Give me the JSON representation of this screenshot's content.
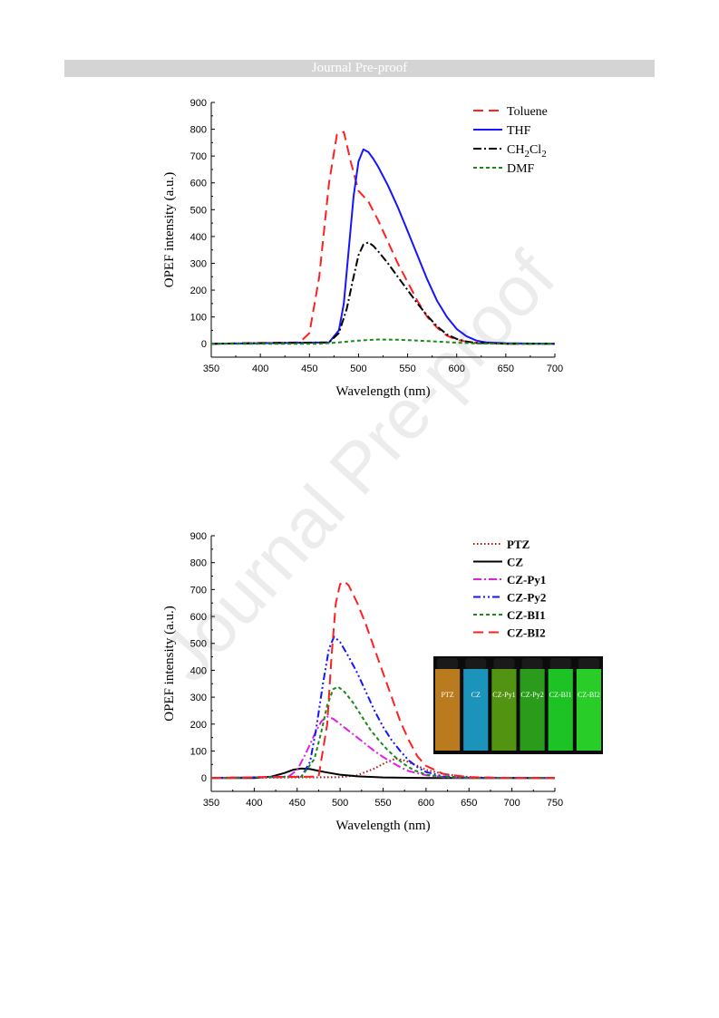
{
  "header": {
    "banner_text": "Journal Pre-proof"
  },
  "watermark": "Journal Pre-proof",
  "chart_data": [
    {
      "type": "line",
      "title": "",
      "xlabel": "Wavelength (nm)",
      "ylabel": "OPEF intensity (a.u.)",
      "xlim": [
        350,
        700
      ],
      "ylim": [
        -50,
        900
      ],
      "xticks": [
        350,
        400,
        450,
        500,
        550,
        600,
        650,
        700
      ],
      "yticks": [
        0,
        100,
        200,
        300,
        400,
        500,
        600,
        700,
        800,
        900
      ],
      "legend_position": "top-right",
      "series": [
        {
          "name": "Toluene",
          "color": "#ff2020",
          "dash": "long-dash",
          "x": [
            350,
            440,
            450,
            460,
            470,
            478,
            485,
            492,
            500,
            510,
            520,
            530,
            540,
            550,
            560,
            570,
            580,
            590,
            600,
            610,
            620,
            650,
            700
          ],
          "y": [
            0,
            5,
            40,
            250,
            600,
            780,
            790,
            680,
            570,
            530,
            460,
            380,
            300,
            230,
            160,
            100,
            60,
            30,
            15,
            8,
            3,
            0,
            0
          ]
        },
        {
          "name": "THF",
          "color": "#1515ff",
          "dash": "solid",
          "x": [
            350,
            470,
            480,
            485,
            490,
            495,
            500,
            505,
            510,
            515,
            520,
            530,
            540,
            550,
            560,
            570,
            580,
            590,
            600,
            610,
            620,
            630,
            650,
            700
          ],
          "y": [
            0,
            5,
            50,
            150,
            350,
            550,
            680,
            725,
            715,
            690,
            660,
            590,
            510,
            420,
            330,
            240,
            160,
            100,
            55,
            28,
            12,
            5,
            2,
            0
          ]
        },
        {
          "name": "CH2Cl2",
          "label_main": "CH",
          "label_sub1": "2",
          "label_mid": "Cl",
          "label_sub2": "2",
          "color": "#000000",
          "dash": "dash-dot",
          "x": [
            350,
            470,
            480,
            488,
            495,
            500,
            505,
            510,
            515,
            520,
            530,
            540,
            550,
            560,
            570,
            580,
            590,
            600,
            610,
            620,
            650,
            700
          ],
          "y": [
            0,
            5,
            40,
            130,
            250,
            330,
            370,
            378,
            365,
            345,
            300,
            250,
            200,
            150,
            105,
            65,
            35,
            18,
            8,
            3,
            0,
            0
          ]
        },
        {
          "name": "DMF",
          "color": "#1a8a1a",
          "dash": "short-dash",
          "x": [
            350,
            460,
            480,
            500,
            520,
            540,
            560,
            580,
            600,
            620,
            650,
            700
          ],
          "y": [
            0,
            0,
            5,
            12,
            16,
            15,
            12,
            8,
            4,
            1,
            0,
            0
          ]
        }
      ]
    },
    {
      "type": "line",
      "title": "",
      "xlabel": "Wavelength (nm)",
      "ylabel": "OPEF intensity (a.u.)",
      "xlim": [
        350,
        750
      ],
      "ylim": [
        -50,
        900
      ],
      "xticks": [
        350,
        400,
        450,
        500,
        550,
        600,
        650,
        700,
        750
      ],
      "yticks": [
        0,
        100,
        200,
        300,
        400,
        500,
        600,
        700,
        800,
        900
      ],
      "legend_position": "top-right",
      "series": [
        {
          "name": "PTZ",
          "color": "#b01010",
          "dash": "dotted",
          "x": [
            350,
            500,
            520,
            540,
            555,
            565,
            575,
            590,
            600,
            620,
            640,
            660,
            700,
            750
          ],
          "y": [
            0,
            3,
            10,
            35,
            60,
            72,
            65,
            45,
            30,
            15,
            6,
            2,
            0,
            0
          ]
        },
        {
          "name": "CZ",
          "color": "#000000",
          "dash": "solid",
          "x": [
            350,
            400,
            420,
            435,
            445,
            455,
            465,
            475,
            485,
            500,
            520,
            550,
            600,
            650,
            750
          ],
          "y": [
            0,
            0,
            5,
            18,
            30,
            35,
            33,
            26,
            20,
            12,
            6,
            2,
            0,
            0,
            0
          ]
        },
        {
          "name": "CZ-Py1",
          "color": "#e020e0",
          "dash": "dash-dot",
          "x": [
            350,
            440,
            450,
            460,
            470,
            478,
            485,
            492,
            500,
            510,
            520,
            530,
            540,
            550,
            560,
            570,
            580,
            600,
            620,
            650,
            750
          ],
          "y": [
            0,
            5,
            30,
            90,
            160,
            210,
            228,
            220,
            200,
            175,
            150,
            125,
            100,
            78,
            58,
            40,
            25,
            10,
            3,
            0,
            0
          ]
        },
        {
          "name": "CZ-Py2",
          "color": "#1515ff",
          "dash": "dash-dot-dot",
          "x": [
            350,
            455,
            465,
            472,
            480,
            487,
            493,
            500,
            510,
            520,
            530,
            540,
            550,
            560,
            570,
            580,
            590,
            600,
            620,
            650,
            750
          ],
          "y": [
            0,
            5,
            60,
            180,
            350,
            480,
            525,
            505,
            450,
            390,
            320,
            250,
            190,
            140,
            100,
            65,
            40,
            22,
            6,
            1,
            0
          ]
        },
        {
          "name": "CZ-BI1",
          "color": "#1a8a1a",
          "dash": "short-dash",
          "x": [
            350,
            455,
            470,
            478,
            485,
            492,
            498,
            505,
            515,
            525,
            535,
            545,
            555,
            565,
            575,
            585,
            600,
            620,
            650,
            750
          ],
          "y": [
            0,
            5,
            70,
            170,
            270,
            330,
            338,
            320,
            280,
            230,
            180,
            140,
            105,
            75,
            50,
            30,
            12,
            4,
            0,
            0
          ]
        },
        {
          "name": "CZ-BI2",
          "color": "#ff2020",
          "dash": "long-dash",
          "x": [
            350,
            475,
            485,
            490,
            495,
            500,
            505,
            510,
            520,
            530,
            540,
            550,
            560,
            570,
            580,
            590,
            600,
            620,
            650,
            700,
            750
          ],
          "y": [
            0,
            5,
            200,
            450,
            650,
            720,
            730,
            715,
            650,
            570,
            480,
            390,
            300,
            210,
            140,
            80,
            45,
            15,
            3,
            0,
            0
          ]
        }
      ]
    }
  ],
  "photo": {
    "labels": [
      "PTZ",
      "CZ",
      "CZ-Py1",
      "CZ-Py2",
      "CZ-BI1",
      "CZ-BI2"
    ],
    "vial_colors": [
      "#c9851f",
      "#1d9fca",
      "#5a9f14",
      "#2ea81c",
      "#1fd428",
      "#2be02a"
    ]
  }
}
